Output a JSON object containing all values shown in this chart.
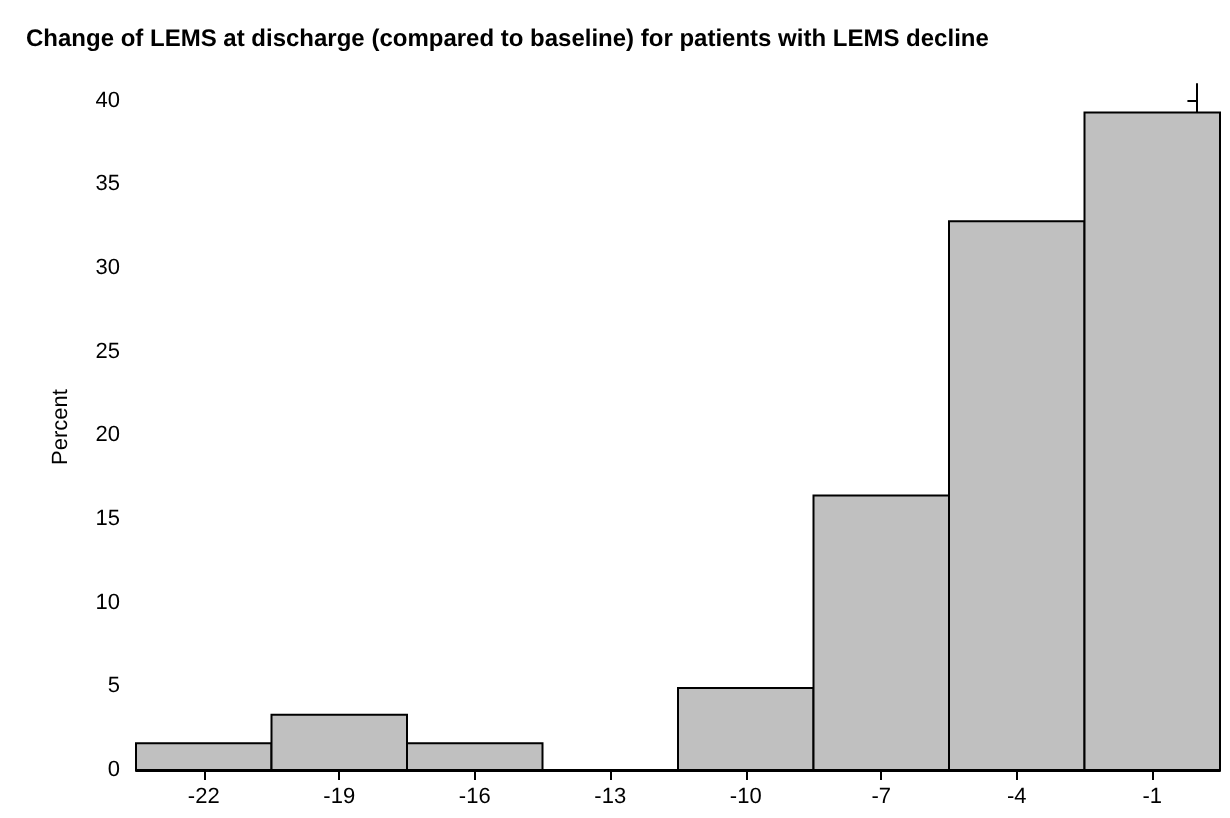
{
  "chart_data": {
    "type": "histogram",
    "title": "Change of LEMS at discharge (compared to baseline) for patients with LEMS decline",
    "ylabel": "Percent",
    "bins": [
      -23.5,
      -20.5,
      -17.5,
      -14.5,
      -11.5,
      -8.5,
      -5.5,
      -2.5,
      0.5
    ],
    "values": [
      1.6,
      3.3,
      1.6,
      0,
      4.9,
      16.4,
      32.8,
      39.3
    ],
    "color": "#c0c0c0",
    "xlim": [
      -23.5,
      0.5
    ],
    "xticks": [
      -22,
      -19,
      -16,
      -13,
      -10,
      -7,
      -4,
      -1
    ],
    "ylim": [
      0,
      41
    ],
    "yticks": [
      0,
      5,
      10,
      15,
      20,
      25,
      30,
      35,
      40
    ],
    "grid": false
  }
}
